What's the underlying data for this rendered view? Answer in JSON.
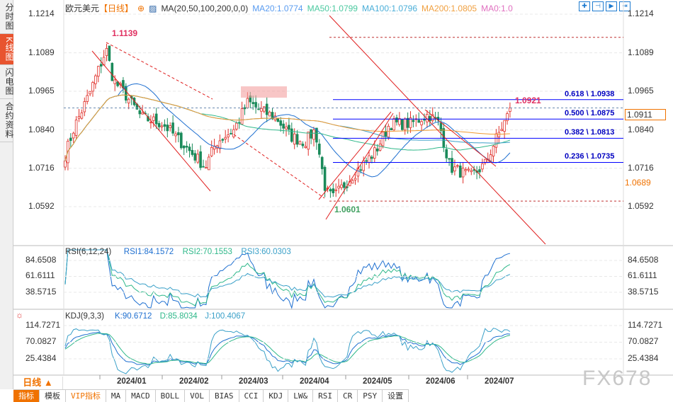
{
  "sidebar": {
    "tabs": [
      {
        "label": "分时图",
        "active": false
      },
      {
        "label": "K线图",
        "active": true
      },
      {
        "label": "闪电图",
        "active": false
      },
      {
        "label": "合约资料",
        "active": false
      }
    ]
  },
  "header": {
    "symbol": "欧元美元",
    "period": "【日线】",
    "ma_label": "MA(20,50,100,200,0,0)",
    "ma20": "MA20:1.0774",
    "ma50": "MA50:1.0799",
    "ma100": "MA100:1.0796",
    "ma200": "MA200:1.0805",
    "ma0": "MA0:1.0"
  },
  "colors": {
    "up": "#e0302a",
    "down": "#1a8a5a",
    "ma20": "#1e6fd0",
    "ma50": "#2fb88a",
    "ma100": "#3aa0c8",
    "ma200": "#f09a30",
    "fib": "#0000ff",
    "trend": "#e02020"
  },
  "toolbar_icons": [
    "crosshair-icon",
    "zoom-range-icon",
    "play-forward-icon",
    "goto-end-icon"
  ],
  "price_axis": {
    "ticks": [
      "1.1214",
      "1.1089",
      "1.0965",
      "1.0840",
      "1.0716",
      "1.0592"
    ],
    "current": "1.0911",
    "marker": "1.0689"
  },
  "annotations": {
    "high": "1.1139",
    "low": "1.0601",
    "recent_high": "1.0921"
  },
  "fib": [
    {
      "label": "0.618 \\ 1.0938",
      "price": 1.0938
    },
    {
      "label": "0.500 \\ 1.0875",
      "price": 1.0875
    },
    {
      "label": "0.382 \\ 1.0813",
      "price": 1.0813
    },
    {
      "label": "0.236 \\ 1.0735",
      "price": 1.0735
    }
  ],
  "rsi": {
    "title": "RSI(6,12,24)",
    "rsi1": "RSI1:84.1572",
    "rsi2": "RSI2:70.1553",
    "rsi3": "RSI3:60.0303",
    "ticks": [
      "84.6508",
      "61.6111",
      "38.5715"
    ]
  },
  "kdj": {
    "title": "KDJ(9,3,3)",
    "k": "K:90.6712",
    "d": "D:85.8034",
    "j": "J:100.4067",
    "ticks": [
      "114.7271",
      "70.0827",
      "25.4384"
    ]
  },
  "dates": [
    "2024/01",
    "2024/02",
    "2024/03",
    "2024/04",
    "2024/05",
    "2024/06",
    "2024/07"
  ],
  "period_selector": "日线 ▲",
  "bottom_tabs": [
    "指标",
    "模板",
    "VIP指标",
    "MA",
    "MACD",
    "BOLL",
    "VOL",
    "BIAS",
    "CCI",
    "KDJ",
    "LW&",
    "RSI",
    "CR",
    "PSY",
    "设置"
  ],
  "watermark": "FX678",
  "chart_data": {
    "type": "candlestick",
    "ylim": [
      1.0592,
      1.1214
    ],
    "close_path": [
      [
        "2023/11",
        1.076
      ],
      [
        "2023/12",
        1.085
      ],
      [
        "2023/12",
        1.095
      ],
      [
        "2023/12",
        1.11
      ],
      [
        "2024/01",
        1.1
      ],
      [
        "2024/01",
        1.096
      ],
      [
        "2024/01",
        1.088
      ],
      [
        "2024/02",
        1.086
      ],
      [
        "2024/02",
        1.079
      ],
      [
        "2024/02",
        1.072
      ],
      [
        "2024/02",
        1.08
      ],
      [
        "2024/03",
        1.084
      ],
      [
        "2024/03",
        1.093
      ],
      [
        "2024/03",
        1.09
      ],
      [
        "2024/03",
        1.088
      ],
      [
        "2024/04",
        1.082
      ],
      [
        "2024/04",
        1.08
      ],
      [
        "2024/04",
        1.084
      ],
      [
        "2024/04",
        1.064
      ],
      [
        "2024/04",
        1.062
      ],
      [
        "2024/05",
        1.07
      ],
      [
        "2024/05",
        1.077
      ],
      [
        "2024/05",
        1.086
      ],
      [
        "2024/05",
        1.086
      ],
      [
        "2024/06",
        1.089
      ],
      [
        "2024/06",
        1.086
      ],
      [
        "2024/06",
        1.072
      ],
      [
        "2024/06",
        1.069
      ],
      [
        "2024/07",
        1.073
      ],
      [
        "2024/07",
        1.081
      ],
      [
        "2024/07",
        1.0911
      ]
    ]
  }
}
